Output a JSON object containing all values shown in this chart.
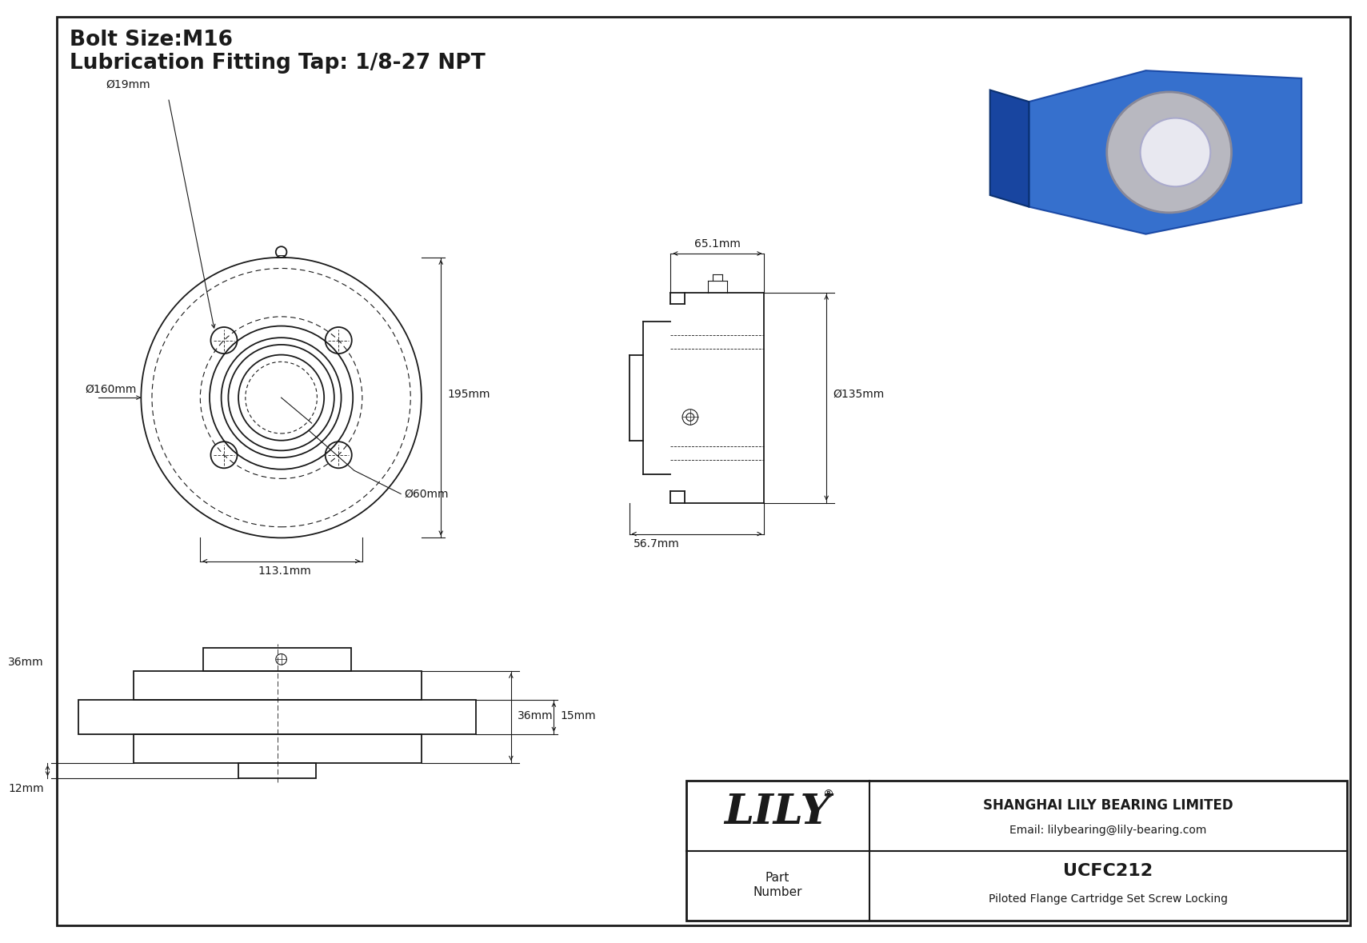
{
  "bg_color": "#ffffff",
  "line_color": "#1a1a1a",
  "title_line1": "Bolt Size:M16",
  "title_line2": "Lubrication Fitting Tap: 1/8-27 NPT",
  "company": "SHANGHAI LILY BEARING LIMITED",
  "email": "Email: lilybearing@lily-bearing.com",
  "part_number": "UCFC212",
  "part_desc": "Piloted Flange Cartridge Set Screw Locking",
  "brand": "LILY",
  "dims": {
    "d19": "Ø19mm",
    "d160": "Ø160mm",
    "d195": "195mm",
    "d113": "113.1mm",
    "d60": "Ø60mm",
    "d65": "65.1mm",
    "d135": "Ø135mm",
    "d567": "56.7mm",
    "d36": "36mm",
    "d15": "15mm",
    "d12": "12mm"
  }
}
